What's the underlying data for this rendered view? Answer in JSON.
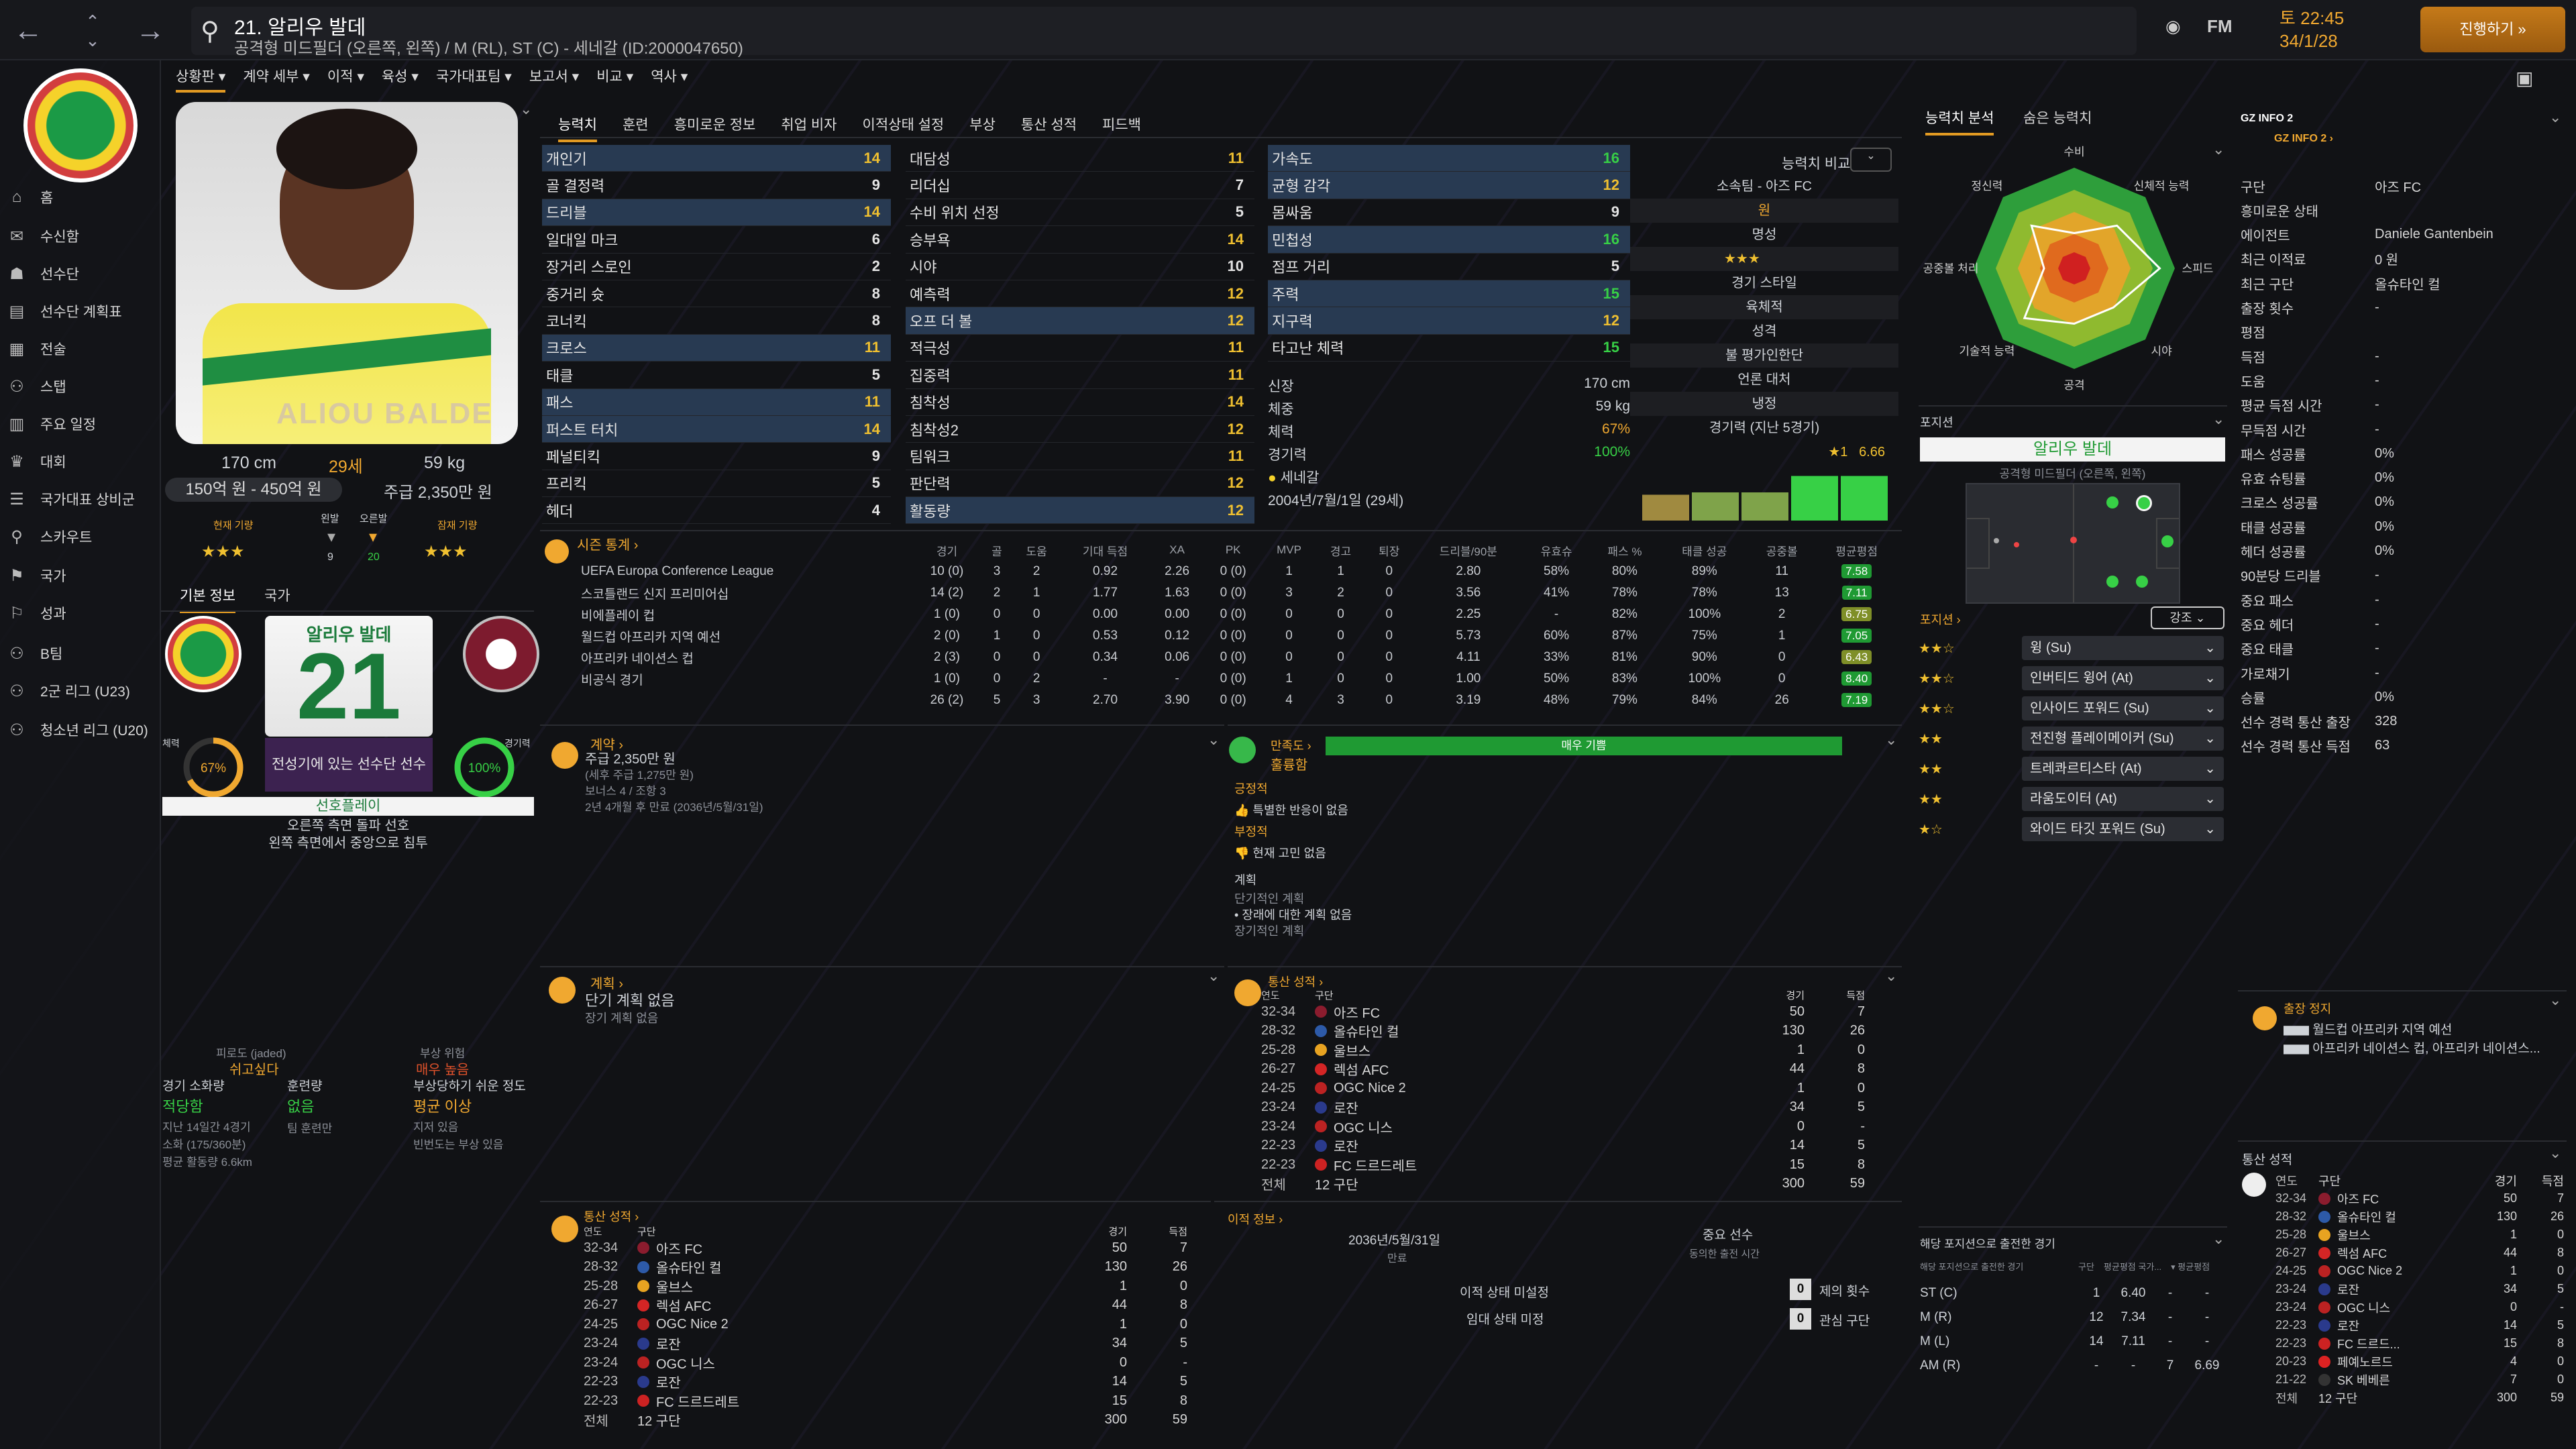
{
  "topbar": {
    "back": "←",
    "forward": "→",
    "player_name": "21. 알리우 발데",
    "player_sub": "공격형 미드필더 (오른쪽, 왼쪽) / M (RL), ST (C) - 세네갈 (ID:2000047650)",
    "day": "토 22:45",
    "date": "34/1/28",
    "continue": "진행하기 »",
    "fm": "FM"
  },
  "sidebar": {
    "items": [
      "홈",
      "수신함",
      "선수단",
      "선수단 계획표",
      "전술",
      "스탭",
      "주요 일정",
      "대회",
      "국가대표 상비군",
      "스카우트",
      "국가",
      "성과",
      "B팀",
      "2군 리그 (U23)",
      "청소년 리그 (U20)"
    ]
  },
  "subnav": [
    "상황판 ▾",
    "계약 세부 ▾",
    "이적 ▾",
    "육성 ▾",
    "국가대표팀 ▾",
    "보고서 ▾",
    "비교 ▾",
    "역사 ▾"
  ],
  "tabs": [
    "능력치",
    "훈련",
    "흥미로운 정보",
    "취업 비자",
    "이적상태 설정",
    "부상",
    "통산 성적",
    "피드백"
  ],
  "profile": {
    "height": "170 cm",
    "age": "29세",
    "weight": "59 kg",
    "value": "150억 원 - 450억 원",
    "wage": "주급 2,350만 원",
    "current_label": "현재 기량",
    "potential_label": "잠재 기량",
    "left_foot": "왼발",
    "right_foot": "오른발",
    "left_foot_val": "9",
    "right_foot_val": "20",
    "photo_name": "ALIOU BALDE",
    "current_stars": "★★★",
    "potential_stars": "★★★"
  },
  "basic_tabs": [
    "기본 정보",
    "국가"
  ],
  "card": {
    "name": "알리우 발데",
    "number": "21",
    "desc": "전성기에 있는 선수단 선수",
    "condition_label": "체력",
    "condition": "67%",
    "condition_val": 0.67,
    "sharpness_label": "경기력",
    "sharpness": "100%",
    "sharpness_val": 1.0,
    "role": "선호플레이",
    "traits": [
      "오른쪽 측면 돌파 선호",
      "왼쪽 측면에서 중앙으로 침투"
    ]
  },
  "attr_tech": [
    [
      "개인기",
      "14",
      1
    ],
    [
      "골 결정력",
      "9",
      0
    ],
    [
      "드리블",
      "14",
      1
    ],
    [
      "일대일 마크",
      "6",
      0
    ],
    [
      "장거리 스로인",
      "2",
      0
    ],
    [
      "중거리 슛",
      "8",
      0
    ],
    [
      "코너킥",
      "8",
      0
    ],
    [
      "크로스",
      "11",
      1
    ],
    [
      "태클",
      "5",
      0
    ],
    [
      "패스",
      "11",
      1
    ],
    [
      "퍼스트 터치",
      "14",
      1
    ],
    [
      "페널티킥",
      "9",
      0
    ],
    [
      "프리킥",
      "5",
      0
    ],
    [
      "헤더",
      "4",
      0
    ]
  ],
  "attr_ment": [
    [
      "대담성",
      "11",
      0
    ],
    [
      "리더십",
      "7",
      0
    ],
    [
      "수비 위치 선정",
      "5",
      0
    ],
    [
      "승부욕",
      "14",
      0
    ],
    [
      "시야",
      "10",
      0
    ],
    [
      "예측력",
      "12",
      0
    ],
    [
      "오프 더 볼",
      "12",
      1
    ],
    [
      "적극성",
      "11",
      0
    ],
    [
      "집중력",
      "11",
      0
    ],
    [
      "침착성",
      "14",
      0
    ],
    [
      "침착성2",
      "12",
      0
    ],
    [
      "팀워크",
      "11",
      0
    ],
    [
      "판단력",
      "12",
      0
    ],
    [
      "활동량",
      "12",
      1
    ]
  ],
  "attr_phys": [
    [
      "가속도",
      "16",
      1
    ],
    [
      "균형 감각",
      "12",
      1
    ],
    [
      "몸싸움",
      "9",
      0
    ],
    [
      "민첩성",
      "16",
      1
    ],
    [
      "점프 거리",
      "5",
      0
    ],
    [
      "주력",
      "15",
      1
    ],
    [
      "지구력",
      "12",
      1
    ],
    [
      "타고난 체력",
      "15",
      0
    ]
  ],
  "physical": {
    "height_label": "신장",
    "height": "170 cm",
    "weight_label": "체중",
    "weight": "59 kg",
    "stamina_label": "체력",
    "stamina": "67%",
    "sharp_label": "경기력",
    "sharp": "100%",
    "nation": "세네갈",
    "dob": "2004년/7월/1일 (29세)",
    "compare": "능력치 비교"
  },
  "club_info": {
    "club_label": "소속팀 - 아즈 FC",
    "rep_label": "명성",
    "playstyle_label": "경기 스타일",
    "playstyle": "육체적",
    "personality_label": "성격",
    "personality": "불 평가인한단",
    "media_label": "언론 대처",
    "media": "냉정",
    "form_label": "경기력 (지난 5경기)",
    "form_pts": "1",
    "form_avg": "6.66",
    "won": "원",
    "form_values": [
      0.55,
      0.6,
      0.6,
      0.95,
      0.95
    ],
    "rep_stars": "★★★"
  },
  "season_stats": {
    "title": "시즌 통계 ›",
    "headers": [
      "경기",
      "골",
      "도움",
      "기대 득점",
      "XA",
      "PK",
      "MVP",
      "경고",
      "퇴장",
      "드리블/90분",
      "유효슈",
      "패스 %",
      "태클 성공",
      "공중볼",
      "평균평점"
    ],
    "rows": [
      [
        "UEFA Europa Conference League",
        "10 (0)",
        "3",
        "2",
        "0.92",
        "2.26",
        "0 (0)",
        "1",
        "1",
        "0",
        "2.80",
        "58%",
        "80%",
        "89%",
        "11",
        "7.58"
      ],
      [
        "스코틀랜드 신지 프리미어십",
        "14 (2)",
        "2",
        "1",
        "1.77",
        "1.63",
        "0 (0)",
        "3",
        "2",
        "0",
        "3.56",
        "41%",
        "78%",
        "78%",
        "13",
        "7.11"
      ],
      [
        "비에플레이 컵",
        "1 (0)",
        "0",
        "0",
        "0.00",
        "0.00",
        "0 (0)",
        "0",
        "0",
        "0",
        "2.25",
        "-",
        "82%",
        "100%",
        "2",
        "6.75"
      ],
      [
        "월드컵 아프리카 지역 예선",
        "2 (0)",
        "1",
        "0",
        "0.53",
        "0.12",
        "0 (0)",
        "0",
        "0",
        "0",
        "5.73",
        "60%",
        "87%",
        "75%",
        "1",
        "7.05"
      ],
      [
        "아프리카 네이션스 컵",
        "2 (3)",
        "0",
        "0",
        "0.34",
        "0.06",
        "0 (0)",
        "0",
        "0",
        "0",
        "4.11",
        "33%",
        "81%",
        "90%",
        "0",
        "6.43"
      ],
      [
        "비공식 경기",
        "1 (0)",
        "0",
        "2",
        "-",
        "-",
        "0 (0)",
        "1",
        "0",
        "0",
        "1.00",
        "50%",
        "83%",
        "100%",
        "0",
        "8.40"
      ],
      [
        "",
        "26 (2)",
        "5",
        "3",
        "2.70",
        "3.90",
        "0 (0)",
        "4",
        "3",
        "0",
        "3.19",
        "48%",
        "79%",
        "84%",
        "26",
        "7.19"
      ]
    ]
  },
  "contract": {
    "title": "계약 ›",
    "wage": "주급 2,350만 원",
    "wage_sub": "(세후 주급 1,275만 원)",
    "bonus": "보너스 4 / 조항 3",
    "expiry": "2년 4개월 후 만료 (2036년/5월/31일)"
  },
  "happiness": {
    "title": "만족도 ›",
    "status": "훌륭함",
    "bar": "매우 기쁨",
    "pos_label": "긍정적",
    "pos": "특별한 반응이 없음",
    "neg_label": "부정적",
    "neg": "현재 고민 없음",
    "plan_label": "계획",
    "short_label": "단기적인 계획",
    "short": "장래에 대한 계획 없음",
    "long_label": "장기적인 계획"
  },
  "plan": {
    "title": "계획 ›",
    "short": "단기 계획 없음",
    "long": "장기 계획 없음"
  },
  "career": {
    "title": "통산 성적 ›",
    "h_year": "연도",
    "h_club": "구단",
    "h_apps": "경기",
    "h_goals": "득점",
    "rows": [
      [
        "32-34",
        "아즈 FC",
        "50",
        "7"
      ],
      [
        "28-32",
        "올슈타인 컬",
        "130",
        "26"
      ],
      [
        "25-28",
        "울브스",
        "1",
        "0"
      ],
      [
        "26-27",
        "렉섬 AFC",
        "44",
        "8"
      ],
      [
        "24-25",
        "OGC Nice 2",
        "1",
        "0"
      ],
      [
        "23-24",
        "로잔",
        "34",
        "5"
      ],
      [
        "23-24",
        "OGC 니스",
        "0",
        "-"
      ],
      [
        "22-23",
        "로잔",
        "14",
        "5"
      ],
      [
        "22-23",
        "FC 드르드레트",
        "15",
        "8"
      ]
    ],
    "total_label": "전체",
    "total_clubs": "12 구단",
    "total_apps": "300",
    "total_goals": "59"
  },
  "injury": {
    "proneness_label": "피로도 (jaded)",
    "proneness": "쉬고싶다",
    "risk_label": "부상 위험",
    "risk": "매우 높음",
    "load_label": "경기 소화량",
    "load": "적당함",
    "train_label": "훈련량",
    "train": "없음",
    "prone_label": "부상당하기 쉬운 정도",
    "prone": "평균 이상",
    "load_sub1": "지난 14일간 4경기",
    "load_sub2": "소화 (175/360분)",
    "load_sub3": "평균 활동량 6.6km",
    "train_sub": "팀 훈련만",
    "prone_sub1": "지저 있음",
    "prone_sub2": "빈번도는 부상 있음"
  },
  "transfer": {
    "title": "이적 정보 ›",
    "date": "2036년/5월/31일",
    "date_label": "만료",
    "status": "이적 상태 미설정",
    "loan": "임대 상태 미정",
    "key_label": "중요 선수",
    "key_sub": "동의한 출전 시간",
    "offers": "0",
    "offers_label": "제의 횟수",
    "interest": "0",
    "interest_label": "관심 구단"
  },
  "analysis": {
    "tabs": [
      "능력치 분석",
      "숨은 능력치"
    ],
    "labels": [
      "수비",
      "신체적 능력",
      "스피드",
      "시야",
      "공격",
      "기술적 능력",
      "공중볼 처리",
      "정신력"
    ],
    "values": [
      0.35,
      0.6,
      0.85,
      0.55,
      0.55,
      0.7,
      0.3,
      0.6
    ]
  },
  "position": {
    "title": "포지션",
    "name": "알리우 발데",
    "role": "공격형 미드필더 (오른쪽, 왼쪽)",
    "roles_title": "포지션 ›",
    "roles_filter": "강조 ⌄",
    "roles": [
      [
        "★★☆",
        "윙 (Su)"
      ],
      [
        "★★☆",
        "인버티드 윙어 (At)"
      ],
      [
        "★★☆",
        "인사이드 포워드 (Su)"
      ],
      [
        "★★",
        "전진형 플레이메이커 (Su)"
      ],
      [
        "★★",
        "트레콰르티스타 (At)"
      ],
      [
        "★★",
        "라움도이터 (At)"
      ],
      [
        "★☆",
        "와이드 타깃 포워드 (Su)"
      ]
    ]
  },
  "pos_stats": {
    "title": "해당 포지션으로 출전한 경기",
    "sub": "해당 포지션으로 출전한 경기",
    "headers": [
      "구단",
      "평균평점 국가...",
      "▾ 평균평점"
    ],
    "rows": [
      [
        "ST (C)",
        "1",
        "6.40",
        "-",
        "-"
      ],
      [
        "M (R)",
        "12",
        "7.34",
        "-",
        "-"
      ],
      [
        "M (L)",
        "14",
        "7.11",
        "-",
        "-"
      ],
      [
        "AM (R)",
        "-",
        "-",
        "7",
        "6.69"
      ]
    ]
  },
  "gz": {
    "title": "GZ INFO 2",
    "sub": "GZ INFO 2 ›",
    "rows": [
      [
        "구단",
        "아즈 FC"
      ],
      [
        "흥미로운 상태",
        ""
      ],
      [
        "에이전트",
        "Daniele Gantenbein"
      ],
      [
        "최근 이적료",
        "0 원"
      ],
      [
        "최근 구단",
        "올슈타인 컬"
      ],
      [
        "출장 횟수",
        "-"
      ],
      [
        "평점",
        ""
      ],
      [
        "득점",
        "-"
      ],
      [
        "도움",
        "-"
      ],
      [
        "평균 득점 시간",
        "-"
      ],
      [
        "무득점 시간",
        "-"
      ],
      [
        "패스 성공률",
        "0%"
      ],
      [
        "유효 슈팅률",
        "0%"
      ],
      [
        "크로스 성공률",
        "0%"
      ],
      [
        "태클 성공률",
        "0%"
      ],
      [
        "헤더 성공률",
        "0%"
      ],
      [
        "90분당 드리블",
        "-"
      ],
      [
        "중요 패스",
        "-"
      ],
      [
        "중요 헤더",
        "-"
      ],
      [
        "중요 태클",
        "-"
      ],
      [
        "가로채기",
        "-"
      ],
      [
        "승률",
        "0%"
      ],
      [
        "선수 경력 통산 출장",
        "328"
      ],
      [
        "선수 경력 통산 득점",
        "63"
      ]
    ]
  },
  "suspension": {
    "title": "출장 정지",
    "rows": [
      "월드컵 아프리카 지역 예선",
      "아프리카 네이션스 컵, 아프리카 네이션스..."
    ]
  },
  "career2": {
    "title": "통산 성적",
    "rows": [
      [
        "32-34",
        "아즈 FC",
        "50",
        "7"
      ],
      [
        "28-32",
        "올슈타인 컬",
        "130",
        "26"
      ],
      [
        "25-28",
        "울브스",
        "1",
        "0"
      ],
      [
        "26-27",
        "렉섬 AFC",
        "44",
        "8"
      ],
      [
        "24-25",
        "OGC Nice 2",
        "1",
        "0"
      ],
      [
        "23-24",
        "로잔",
        "34",
        "5"
      ],
      [
        "23-24",
        "OGC 니스",
        "0",
        "-"
      ],
      [
        "22-23",
        "로잔",
        "14",
        "5"
      ],
      [
        "22-23",
        "FC 드르드...",
        "15",
        "8"
      ],
      [
        "20-23",
        "페예노르드",
        "4",
        "0"
      ],
      [
        "21-22",
        "SK 베베른",
        "7",
        "0"
      ]
    ],
    "total_label": "전체",
    "total_clubs": "12 구단",
    "total_apps": "300",
    "total_goals": "59"
  }
}
